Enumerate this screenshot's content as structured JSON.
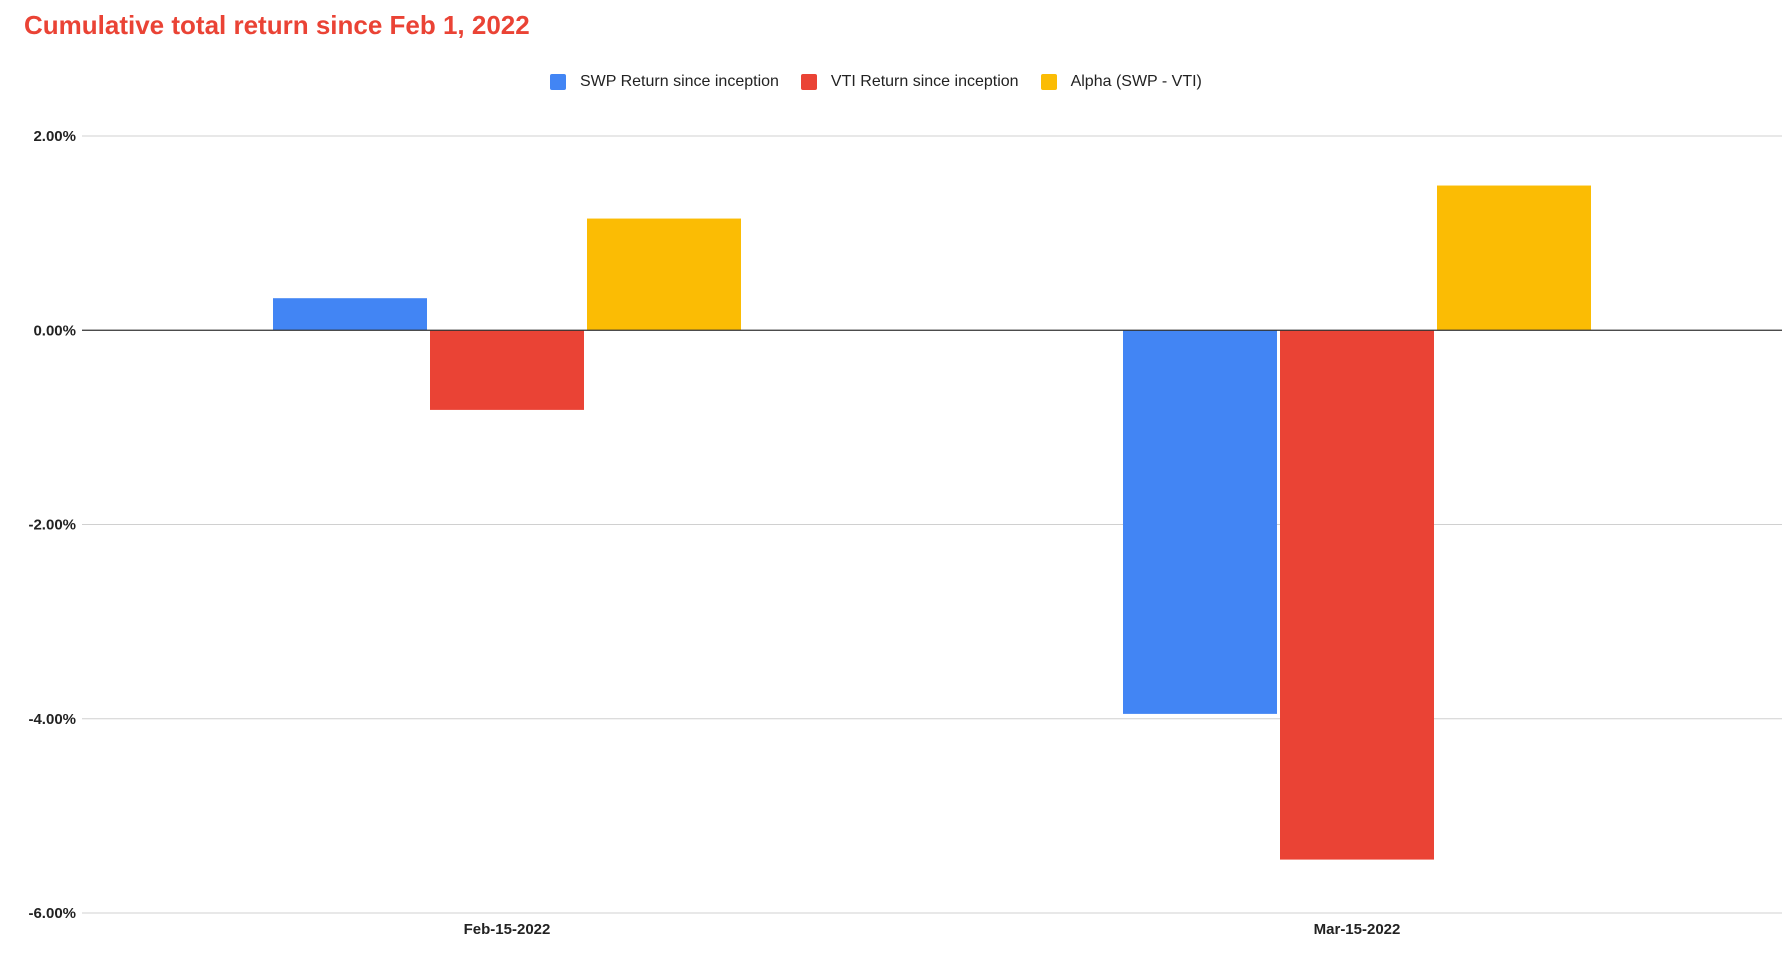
{
  "chart_data": {
    "type": "bar",
    "title": "Cumulative total return since Feb 1, 2022",
    "xlabel": "",
    "ylabel": "",
    "categories": [
      "Feb-15-2022",
      "Mar-15-2022"
    ],
    "series": [
      {
        "name": "SWP Return since inception",
        "color": "#4285f4",
        "values": [
          0.33,
          -3.95
        ]
      },
      {
        "name": "VTI Return since inception",
        "color": "#ea4335",
        "values": [
          -0.82,
          -5.45
        ]
      },
      {
        "name": "Alpha (SWP  - VTI)",
        "color": "#fbbc04",
        "values": [
          1.15,
          1.49
        ]
      }
    ],
    "ylim": [
      -6,
      2
    ],
    "yticks": [
      2,
      0,
      -2,
      -4,
      -6
    ],
    "ytick_labels": [
      "2.00%",
      "0.00%",
      "-2.00%",
      "-4.00%",
      "-6.00%"
    ],
    "grid": true,
    "legend_position": "top-center",
    "title_color": "#ea4335"
  }
}
